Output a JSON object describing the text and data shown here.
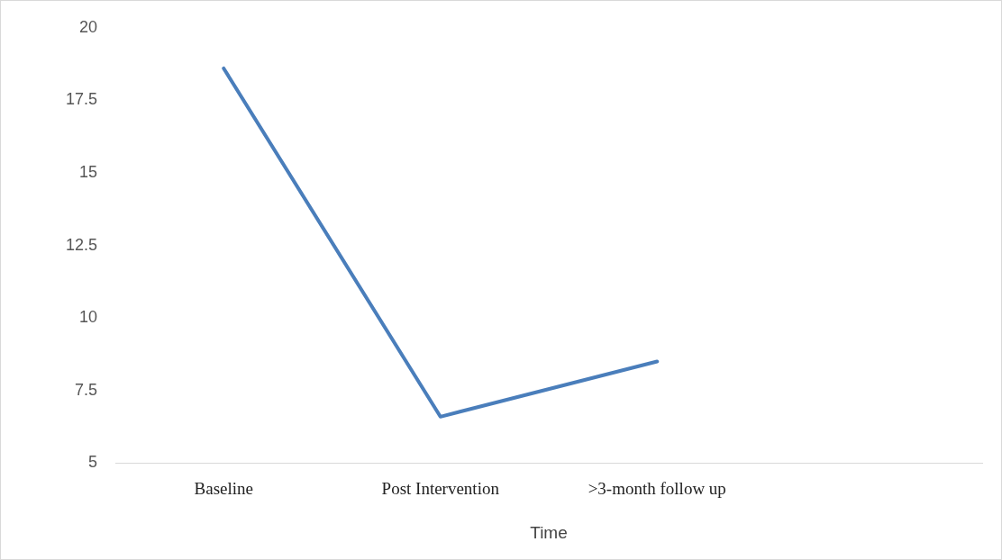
{
  "chart_data": {
    "type": "line",
    "xlabel": "Time",
    "categories": [
      "Baseline",
      "Post Intervention",
      ">3-month follow up",
      null
    ],
    "series": [
      {
        "color": "#4a7ebb",
        "values": [
          18.6,
          6.6,
          8.5,
          null
        ]
      }
    ],
    "ylim": [
      5,
      20
    ],
    "yticks": [
      5,
      7.5,
      10,
      12.5,
      15,
      17.5,
      20
    ],
    "grid": false,
    "marker": "none",
    "line_style": "solid"
  }
}
